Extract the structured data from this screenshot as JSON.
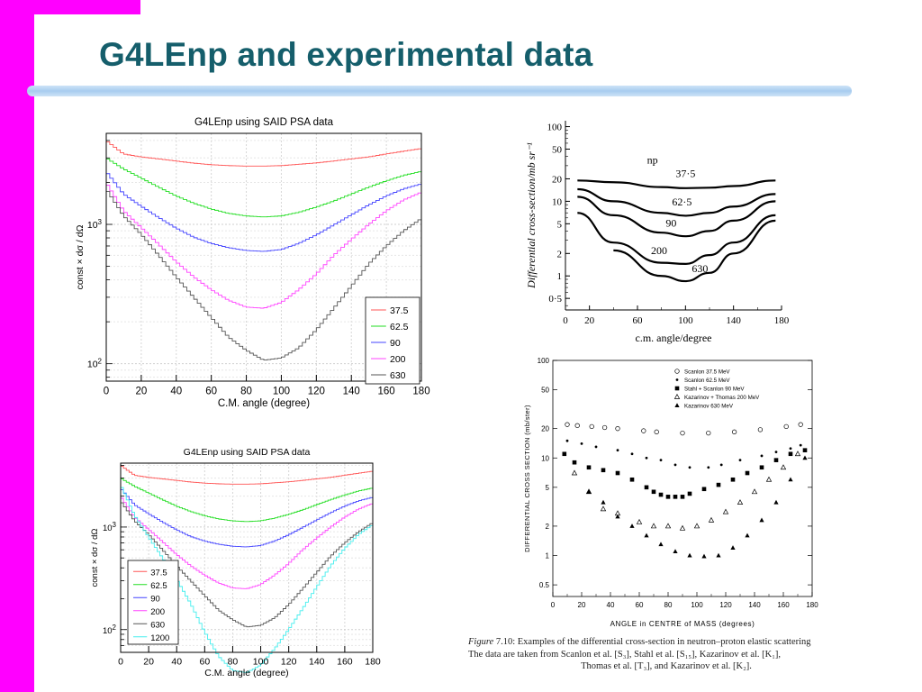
{
  "slide": {
    "title": "G4LEnp and experimental data",
    "accent": "#155e6b",
    "sidebar_color": "#ff00ff"
  },
  "chart_data": [
    {
      "type": "line",
      "title": "G4LEnp using SAID PSA data",
      "xlabel": "C.M. angle (degree)",
      "ylabel": "const × dσ / dΩ",
      "xlim": [
        0,
        180
      ],
      "x_ticks": [
        "0",
        "20",
        "40",
        "60",
        "80",
        "100",
        "120",
        "140",
        "160",
        "180"
      ],
      "y_scale": "log",
      "y_ticks": [
        "10²",
        "10³"
      ],
      "grid": true,
      "legend_position": "bottom-right",
      "x": [
        0,
        10,
        20,
        30,
        40,
        50,
        60,
        70,
        80,
        90,
        100,
        110,
        120,
        130,
        140,
        150,
        160,
        170,
        180
      ],
      "series": [
        {
          "name": "37.5",
          "color": "#ff5555",
          "values": [
            4000,
            3200,
            3050,
            2950,
            2850,
            2750,
            2680,
            2640,
            2620,
            2620,
            2640,
            2700,
            2760,
            2850,
            2950,
            3050,
            3200,
            3350,
            3500
          ]
        },
        {
          "name": "62.5",
          "color": "#22dd22",
          "values": [
            3000,
            2500,
            2150,
            1850,
            1600,
            1420,
            1290,
            1200,
            1150,
            1130,
            1150,
            1220,
            1330,
            1470,
            1650,
            1850,
            2050,
            2250,
            2400
          ]
        },
        {
          "name": "90",
          "color": "#4444ff",
          "values": [
            2400,
            1650,
            1350,
            1120,
            940,
            810,
            730,
            680,
            650,
            640,
            660,
            730,
            840,
            990,
            1170,
            1380,
            1600,
            1800,
            1950
          ]
        },
        {
          "name": "200",
          "color": "#ff44ff",
          "values": [
            2000,
            1250,
            950,
            720,
            540,
            420,
            340,
            285,
            255,
            250,
            275,
            340,
            440,
            600,
            780,
            1000,
            1250,
            1500,
            1700
          ]
        },
        {
          "name": "630",
          "color": "#555555",
          "values": [
            1800,
            1150,
            850,
            600,
            420,
            300,
            215,
            155,
            125,
            106,
            110,
            130,
            175,
            250,
            360,
            520,
            700,
            900,
            1100
          ]
        }
      ]
    },
    {
      "type": "line",
      "title": "G4LEnp using SAID PSA data",
      "xlabel": "C.M. angle (degree)",
      "ylabel": "const × dσ / dΩ",
      "xlim": [
        0,
        180
      ],
      "x_ticks": [
        "0",
        "20",
        "40",
        "60",
        "80",
        "100",
        "120",
        "140",
        "160",
        "180"
      ],
      "y_scale": "log",
      "y_ticks": [
        "10²",
        "10³"
      ],
      "grid": true,
      "legend_position": "bottom-left",
      "x": [
        0,
        10,
        20,
        30,
        40,
        50,
        60,
        70,
        80,
        90,
        100,
        110,
        120,
        130,
        140,
        150,
        160,
        170,
        180
      ],
      "series": [
        {
          "name": "37.5",
          "color": "#ff5555",
          "values": [
            4000,
            3200,
            3050,
            2950,
            2850,
            2750,
            2680,
            2640,
            2620,
            2620,
            2640,
            2700,
            2760,
            2850,
            2950,
            3050,
            3200,
            3350,
            3500
          ]
        },
        {
          "name": "62.5",
          "color": "#22dd22",
          "values": [
            3000,
            2500,
            2150,
            1850,
            1600,
            1420,
            1290,
            1200,
            1150,
            1130,
            1150,
            1220,
            1330,
            1470,
            1650,
            1850,
            2050,
            2250,
            2400
          ]
        },
        {
          "name": "90",
          "color": "#4444ff",
          "values": [
            2400,
            1650,
            1350,
            1120,
            940,
            810,
            730,
            680,
            650,
            640,
            660,
            730,
            840,
            990,
            1170,
            1380,
            1600,
            1800,
            1950
          ]
        },
        {
          "name": "200",
          "color": "#ff44ff",
          "values": [
            2000,
            1250,
            950,
            720,
            540,
            420,
            340,
            285,
            255,
            250,
            275,
            340,
            440,
            600,
            780,
            1000,
            1250,
            1500,
            1700
          ]
        },
        {
          "name": "630",
          "color": "#555555",
          "values": [
            1800,
            1150,
            850,
            600,
            420,
            300,
            215,
            155,
            125,
            106,
            110,
            130,
            175,
            250,
            360,
            520,
            700,
            900,
            1100
          ]
        },
        {
          "name": "1200",
          "color": "#44eeee",
          "values": [
            2600,
            1300,
            800,
            500,
            310,
            180,
            95,
            55,
            40,
            38,
            45,
            65,
            100,
            160,
            260,
            420,
            620,
            850,
            1050
          ]
        }
      ]
    },
    {
      "type": "line",
      "title": "",
      "xlabel": "c.m. angle/degree",
      "ylabel": "Differential cross-section/mb sr⁻¹",
      "xlim": [
        0,
        180
      ],
      "x_ticks": [
        "0",
        "20",
        "60",
        "100",
        "140",
        "180"
      ],
      "y_scale": "log",
      "y_ticks": [
        "100",
        "50",
        "20",
        "10",
        "5",
        "2",
        "1",
        "0·5"
      ],
      "annotation": "np",
      "x": [
        10,
        40,
        80,
        100,
        120,
        140,
        175
      ],
      "series": [
        {
          "name": "37·5",
          "values": [
            19,
            18,
            15.5,
            15,
            15.2,
            16,
            19
          ]
        },
        {
          "name": "62·5",
          "values": [
            14.5,
            10,
            7,
            6.4,
            7,
            8.5,
            12.5
          ]
        },
        {
          "name": "90",
          "values": [
            11.5,
            6.5,
            3.8,
            3.4,
            4,
            5.5,
            10
          ]
        },
        {
          "name": "200",
          "values": [
            7,
            2.8,
            1.5,
            1.45,
            1.9,
            2.8,
            6.5
          ]
        },
        {
          "name": "630",
          "values": [
            null,
            2.2,
            1.0,
            0.85,
            1.1,
            2.0,
            5.5
          ]
        }
      ]
    },
    {
      "type": "scatter",
      "title": "",
      "xlabel": "ANGLE in CENTRE of MASS (degrees)",
      "ylabel": "DIFFERENTIAL CROSS SECTION (mb/ster)",
      "xlim": [
        0,
        180
      ],
      "x_ticks": [
        "0",
        "20",
        "40",
        "60",
        "80",
        "100",
        "120",
        "140",
        "160",
        "180"
      ],
      "y_scale": "log",
      "y_ticks": [
        "100",
        "50",
        "20",
        "10",
        "5",
        "2",
        "1",
        "0.5"
      ],
      "legend_position": "top-right",
      "series": [
        {
          "name": "Scanlon 37.5 MeV",
          "marker": "open-circle",
          "x": [
            10,
            17,
            27,
            36,
            45,
            63,
            72,
            90,
            108,
            126,
            144,
            162,
            172
          ],
          "values": [
            22,
            21.5,
            21,
            20.5,
            20,
            19,
            18.5,
            18,
            18,
            18.5,
            19.5,
            21,
            22
          ]
        },
        {
          "name": "Scanlon 62.5 MeV",
          "marker": "filled-dot",
          "x": [
            10,
            20,
            30,
            45,
            55,
            65,
            75,
            85,
            95,
            108,
            117,
            130,
            145,
            155,
            165,
            172
          ],
          "values": [
            15,
            14,
            13,
            12,
            11,
            10,
            9.5,
            8.5,
            8,
            8,
            8.5,
            9.5,
            10.5,
            11.5,
            12.5,
            13.5
          ]
        },
        {
          "name": "Stahl + Scanlon 90 MeV",
          "marker": "filled-square",
          "x": [
            8,
            15,
            25,
            35,
            45,
            55,
            65,
            70,
            75,
            80,
            85,
            90,
            95,
            105,
            115,
            125,
            135,
            145,
            155,
            165,
            175
          ],
          "values": [
            11,
            9,
            8,
            7.5,
            7,
            6,
            5,
            4.5,
            4.2,
            4,
            4,
            4,
            4.3,
            4.8,
            5.3,
            6,
            7,
            8,
            9.5,
            11,
            12
          ]
        },
        {
          "name": "Kazarinov + Thomas 200 MeV",
          "marker": "open-triangle",
          "x": [
            15,
            25,
            35,
            45,
            60,
            70,
            80,
            90,
            100,
            110,
            120,
            130,
            140,
            150,
            160,
            170
          ],
          "values": [
            7,
            4.5,
            3,
            2.7,
            2.2,
            2,
            2,
            1.9,
            2,
            2.3,
            2.8,
            3.5,
            4.5,
            6,
            8,
            11
          ]
        },
        {
          "name": "Kazarinov 630 MeV",
          "marker": "filled-triangle",
          "x": [
            25,
            35,
            45,
            55,
            65,
            75,
            85,
            95,
            105,
            115,
            125,
            135,
            145,
            155,
            165,
            175
          ],
          "values": [
            4.5,
            3.5,
            2.5,
            2,
            1.6,
            1.3,
            1.1,
            1,
            0.98,
            1,
            1.2,
            1.6,
            2.3,
            3.5,
            6,
            10
          ]
        }
      ]
    }
  ],
  "caption": {
    "line1_lead": "Figure",
    "line1_rest": " 7.10: Examples of the differential cross-section in neutron–proton elastic scattering",
    "line2": "The data are taken from Scanlon et al. [S₃], Stahl et al. [S₁₅], Kazarinov et al. [K₁],",
    "line3": "Thomas et al. [T₃], and Kazarinov et al. [K₂]."
  }
}
